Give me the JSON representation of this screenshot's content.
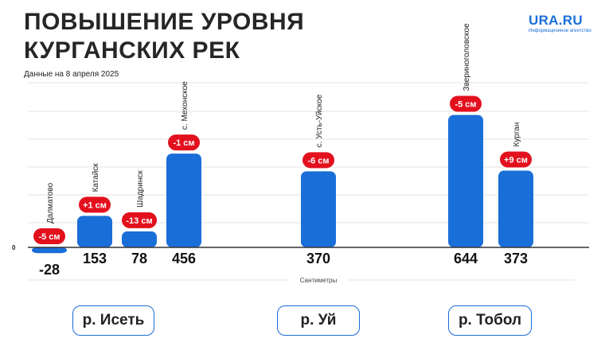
{
  "header": {
    "title": "ПОВЫШЕНИЕ УРОВНЯ\nКУРГАНСКИХ РЕК",
    "subtitle": "Данные на 8 апреля 2025"
  },
  "logo": {
    "name": "URA.RU",
    "tagline": "Информационное агентство"
  },
  "colors": {
    "bar": "#1a6ed8",
    "badge": "#e3101e",
    "grid": "#e3e3e3",
    "axis": "#333333"
  },
  "chart_data": {
    "type": "bar",
    "xlabel": "Сантиметры",
    "zero_label": "0",
    "ylim": [
      -40,
      700
    ],
    "points": [
      {
        "station": "Далматово",
        "value": -28,
        "value_label": "-28",
        "change": "-5 см",
        "river": "р. Исеть"
      },
      {
        "station": "Катайск",
        "value": 153,
        "value_label": "153",
        "change": "+1 см",
        "river": "р. Исеть"
      },
      {
        "station": "Шадринск",
        "value": 78,
        "value_label": "78",
        "change": "-13 см",
        "river": "р. Исеть"
      },
      {
        "station": "с. Мехонское",
        "value": 456,
        "value_label": "456",
        "change": "-1 см",
        "river": "р. Исеть"
      },
      {
        "station": "с. Усть-Уйское",
        "value": 370,
        "value_label": "370",
        "change": "-6 см",
        "river": "р. Уй"
      },
      {
        "station": "Звериноголовское",
        "value": 644,
        "value_label": "644",
        "change": "-5 см",
        "river": "р. Тобол"
      },
      {
        "station": "Курган",
        "value": 373,
        "value_label": "373",
        "change": "+9 см",
        "river": "р. Тобол"
      }
    ],
    "groups": [
      "р. Исеть",
      "р. Уй",
      "р. Тобол"
    ]
  }
}
